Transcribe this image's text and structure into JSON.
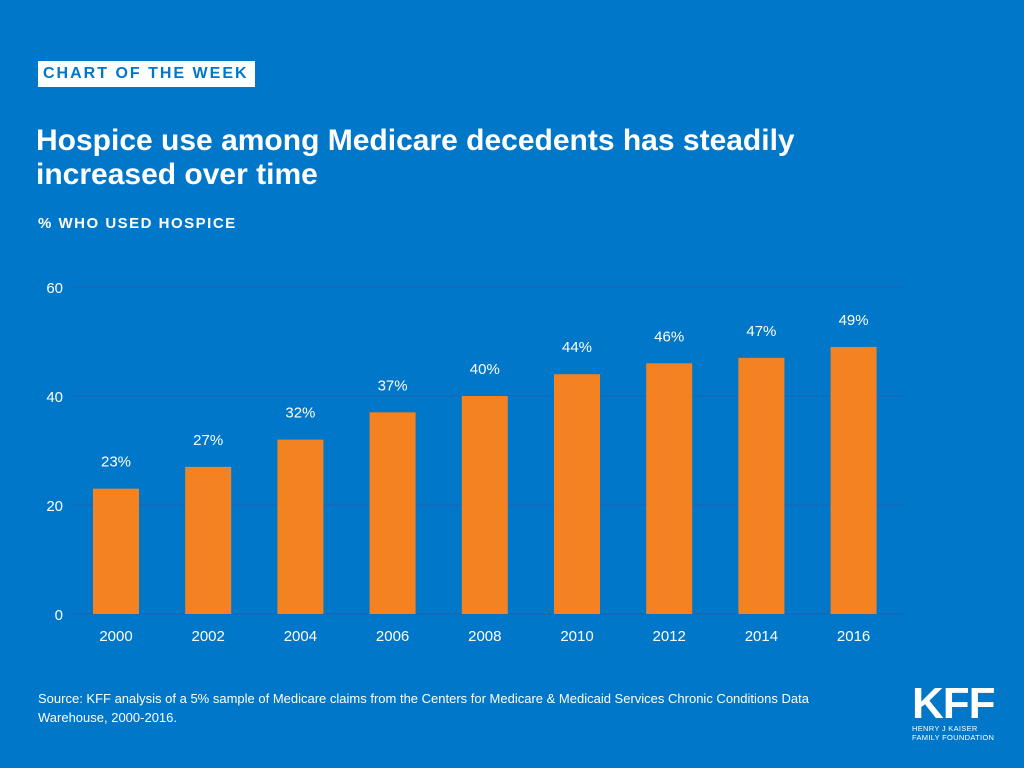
{
  "badge": "CHART OF THE WEEK",
  "title": "Hospice use among Medicare decedents has steadily increased over time",
  "source": "Source: KFF analysis of a 5% sample of Medicare claims from the Centers for Medicare & Medicaid Services Chronic Conditions Data Warehouse, 2000-2016.",
  "logo": {
    "mark": "KFF",
    "subtitle": "HENRY J KAISER FAMILY FOUNDATION"
  },
  "colors": {
    "background": "#0077c8",
    "bar": "#f58220",
    "gridline": "#1f63b5",
    "text": "#ffffff"
  },
  "chart_data": {
    "type": "bar",
    "ylabel": "% WHO USED HOSPICE",
    "categories": [
      "2000",
      "2002",
      "2004",
      "2006",
      "2008",
      "2010",
      "2012",
      "2014",
      "2016"
    ],
    "values": [
      23,
      27,
      32,
      37,
      40,
      44,
      46,
      47,
      49
    ],
    "data_labels": [
      "23%",
      "27%",
      "32%",
      "37%",
      "40%",
      "44%",
      "46%",
      "47%",
      "49%"
    ],
    "ylim": [
      0,
      60
    ],
    "yticks": [
      "0",
      "20",
      "40",
      "60"
    ],
    "grid": true,
    "legend": "none"
  }
}
